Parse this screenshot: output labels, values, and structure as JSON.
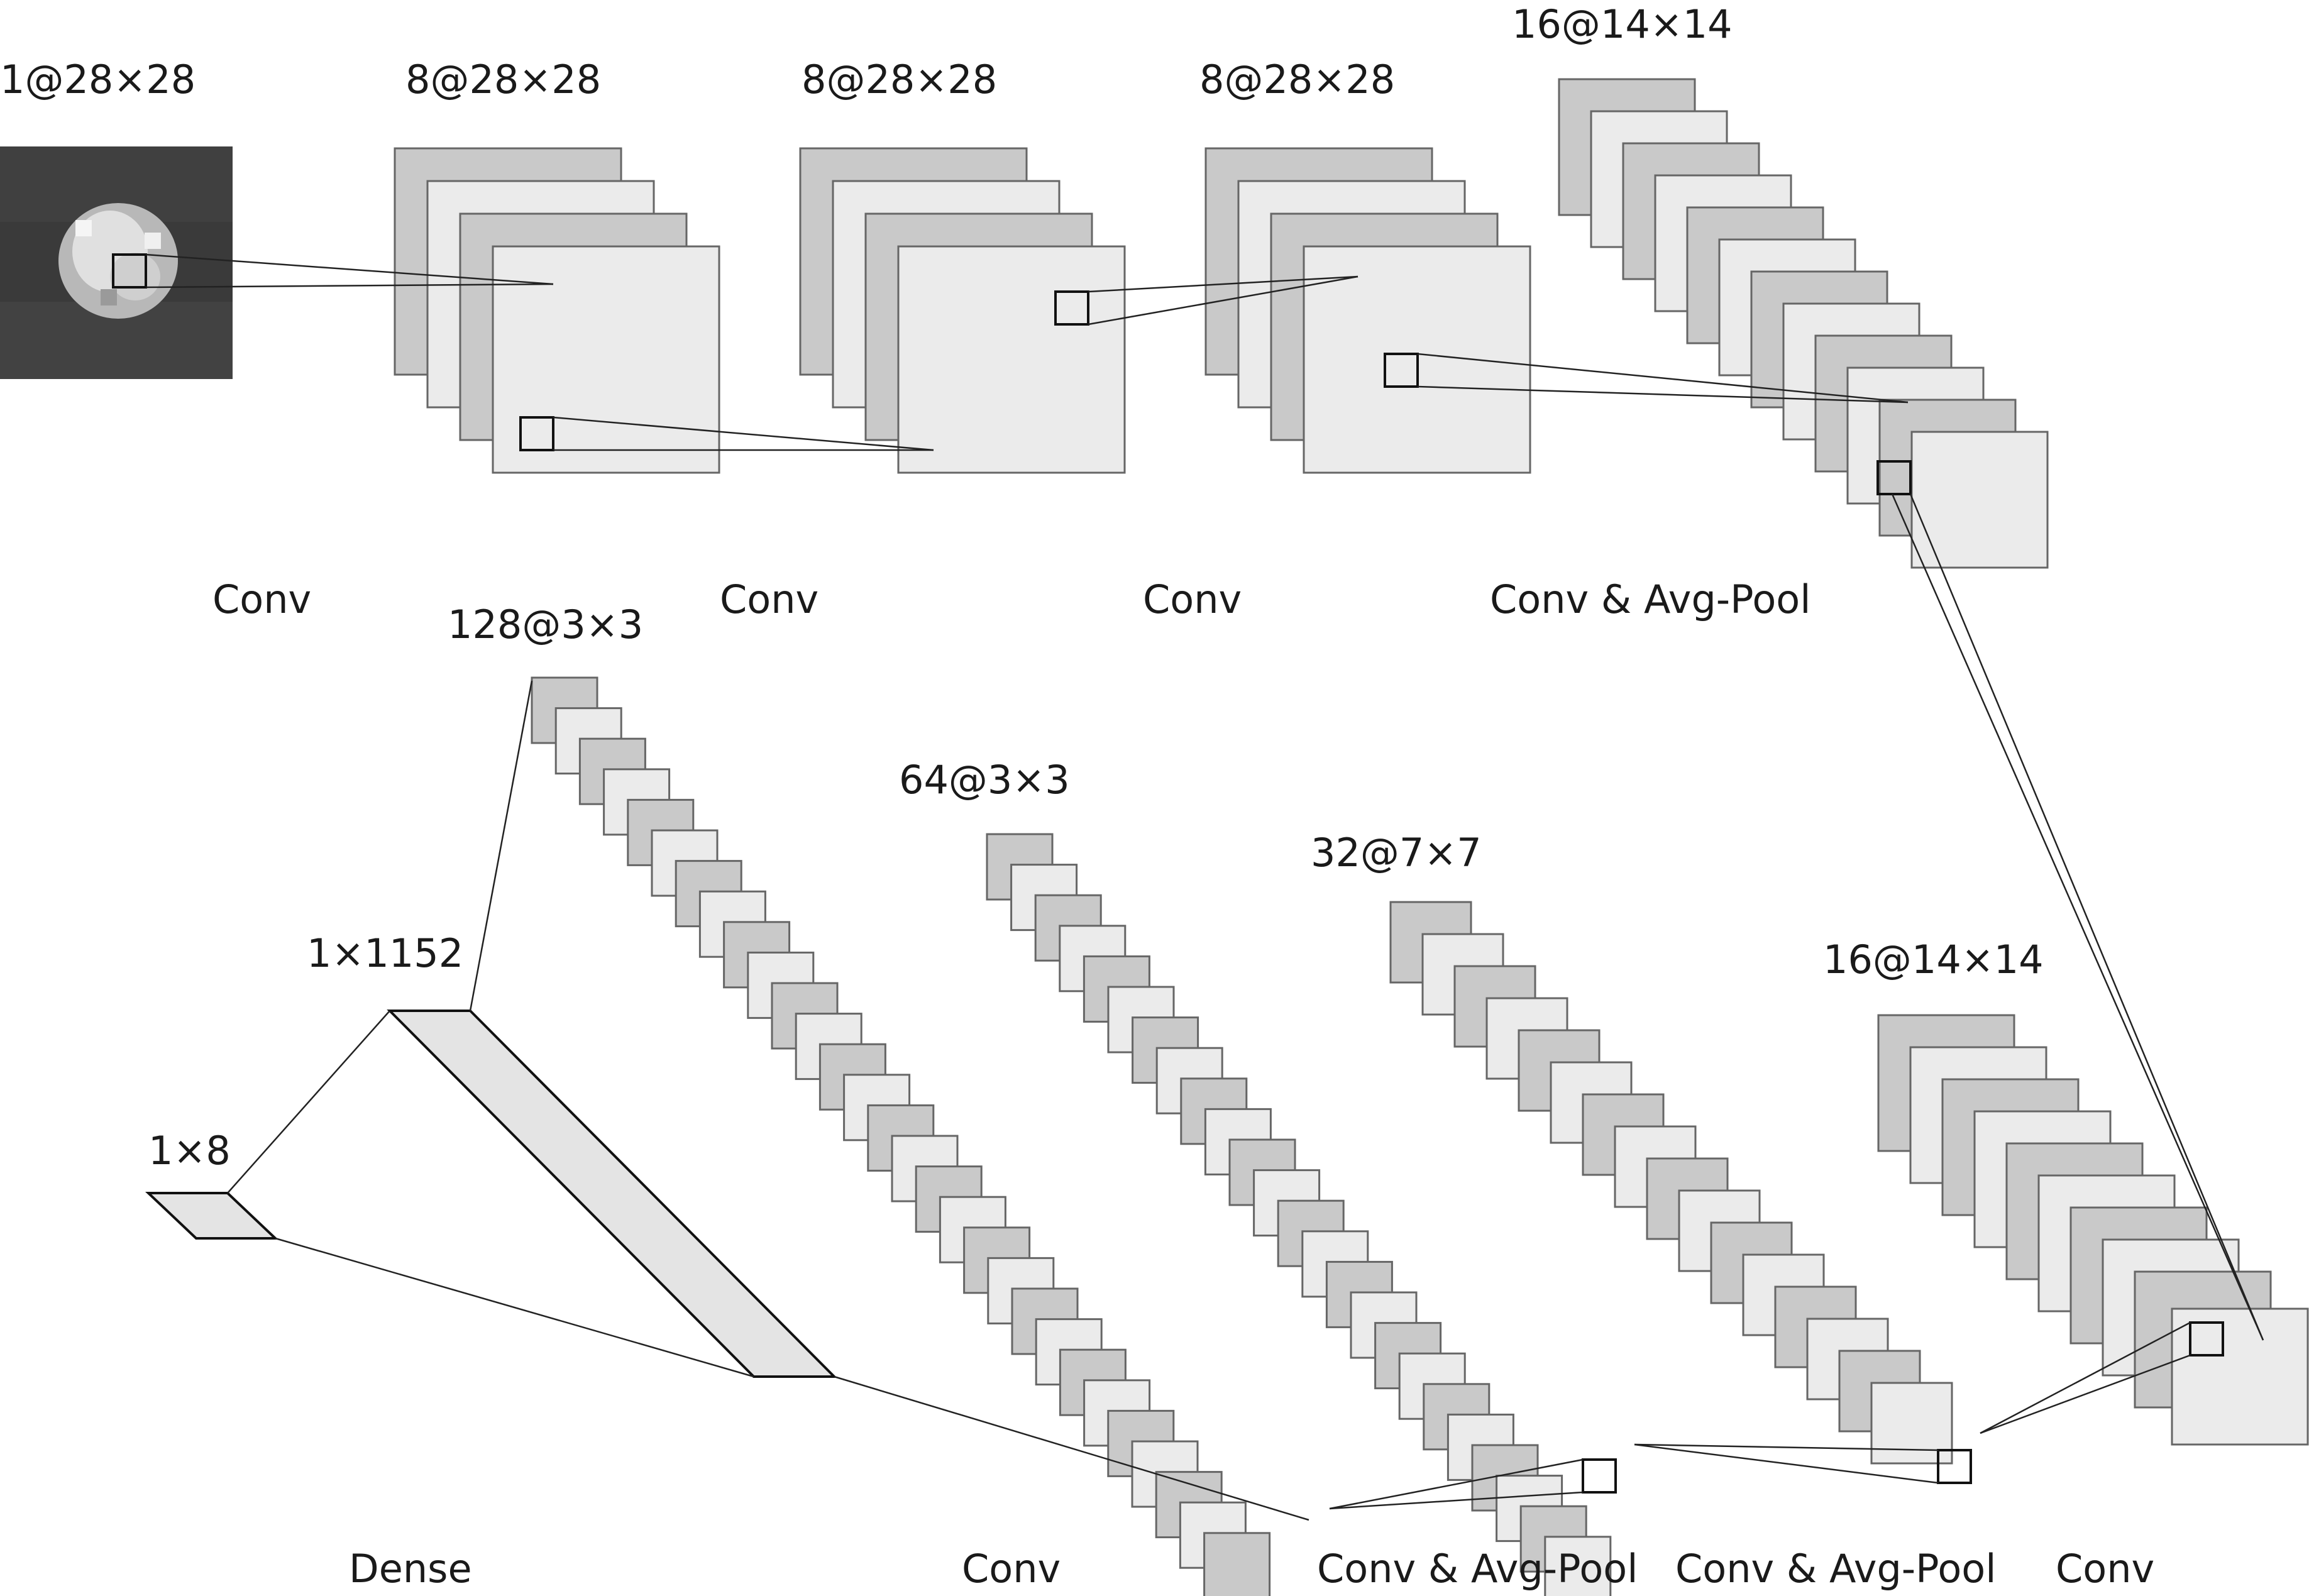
{
  "layers": [
    {
      "id": "input",
      "label": "1@28×28"
    },
    {
      "id": "conv1",
      "label": "8@28×28"
    },
    {
      "id": "conv2",
      "label": "8@28×28"
    },
    {
      "id": "conv3",
      "label": "8@28×28"
    },
    {
      "id": "pool1",
      "label": "16@14×14"
    },
    {
      "id": "conv4",
      "label": "16@14×14"
    },
    {
      "id": "pool2",
      "label": "32@7×7"
    },
    {
      "id": "pool3",
      "label": "64@3×3"
    },
    {
      "id": "conv5",
      "label": "128@3×3"
    },
    {
      "id": "flat",
      "label": "1×1152"
    },
    {
      "id": "dense",
      "label": "1×8"
    }
  ],
  "operations": {
    "top": [
      "Conv",
      "Conv",
      "Conv",
      "Conv & Avg-Pool"
    ],
    "bottom": [
      "Dense",
      "Conv",
      "Conv & Avg-Pool",
      "Conv & Avg-Pool",
      "Conv"
    ]
  },
  "colors": {
    "map_dark": "#c9c9c9",
    "map_light": "#ebebeb",
    "edge": "#666666",
    "line": "#222222"
  }
}
